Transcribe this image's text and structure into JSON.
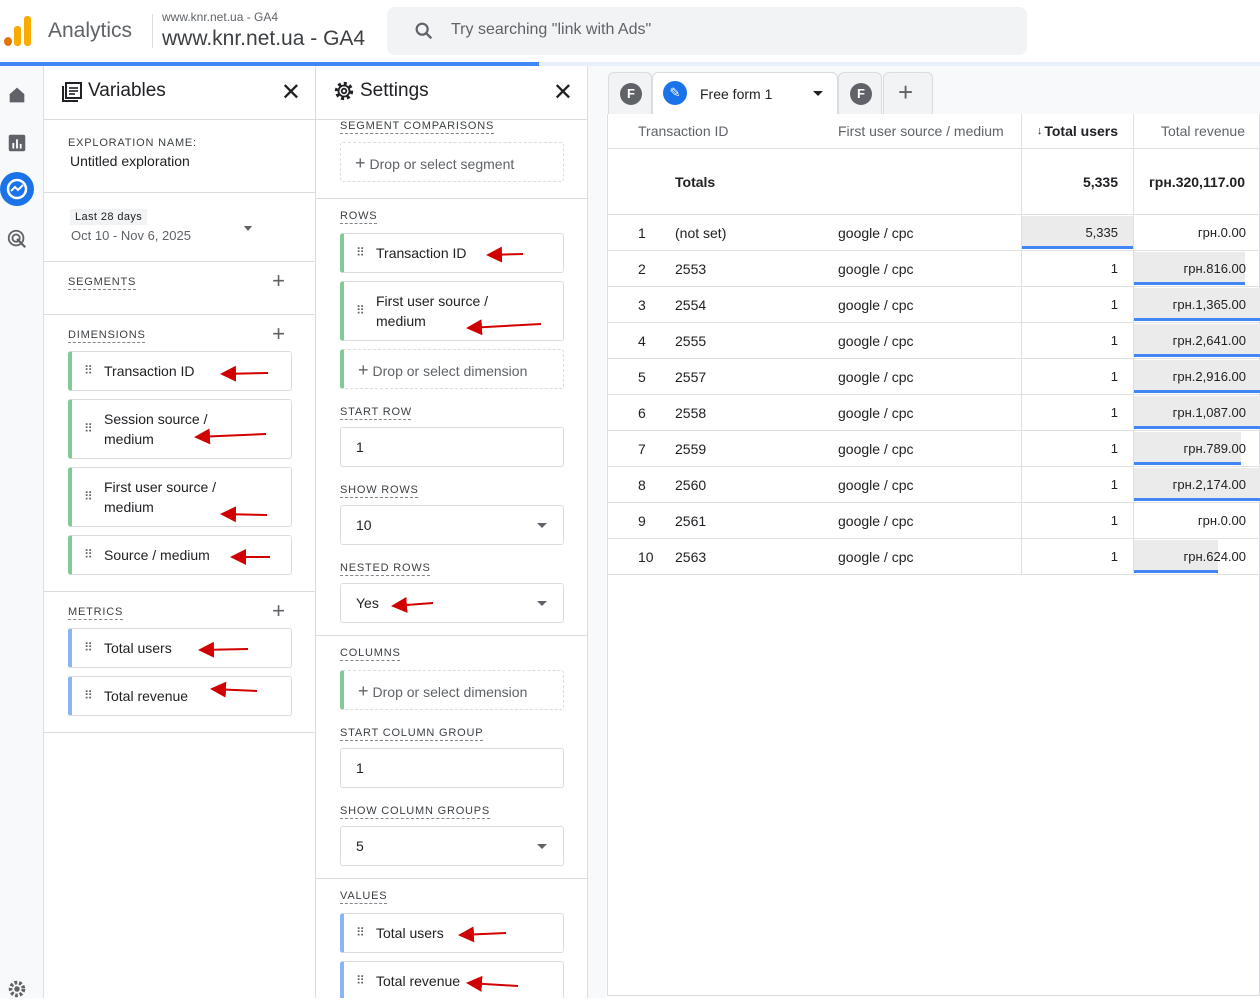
{
  "header": {
    "app_name": "Analytics",
    "property_small": "www.knr.net.ua - GA4",
    "property_big": "www.knr.net.ua - GA4",
    "search_placeholder": "Try searching \"link with Ads\"",
    "logo_colors": [
      "#e37400",
      "#f9ab00",
      "#f9ab00"
    ]
  },
  "rail": {
    "icons": [
      "home-icon",
      "reports-icon",
      "explore-icon",
      "advertising-icon",
      "settings-icon"
    ]
  },
  "variables": {
    "title": "Variables",
    "exploration_name_label": "EXPLORATION NAME:",
    "exploration_name": "Untitled exploration",
    "date_chip": "Last 28 days",
    "date_range": "Oct 10 - Nov 6, 2025",
    "segments_label": "SEGMENTS",
    "dimensions_label": "DIMENSIONS",
    "dimensions": [
      "Transaction ID",
      "Session source / medium",
      "First user source / medium",
      "Source / medium"
    ],
    "metrics_label": "METRICS",
    "metrics": [
      "Total users",
      "Total revenue"
    ]
  },
  "settings": {
    "title": "Settings",
    "segment_comparisons_label": "SEGMENT COMPARISONS",
    "drop_segment": "Drop or select segment",
    "rows_label": "ROWS",
    "rows": [
      "Transaction ID",
      "First user source / medium"
    ],
    "drop_dimension": "Drop or select dimension",
    "start_row_label": "START ROW",
    "start_row": "1",
    "show_rows_label": "SHOW ROWS",
    "show_rows": "10",
    "nested_rows_label": "NESTED ROWS",
    "nested_rows": "Yes",
    "columns_label": "COLUMNS",
    "drop_column_dimension": "Drop or select dimension",
    "start_column_group_label": "START COLUMN GROUP",
    "start_column_group": "1",
    "show_column_groups_label": "SHOW COLUMN GROUPS",
    "show_column_groups": "5",
    "values_label": "VALUES",
    "values": [
      "Total users",
      "Total revenue"
    ]
  },
  "tabs": {
    "first_letter": "F",
    "active": "Free form 1",
    "second_letter": "F",
    "add": "+"
  },
  "table": {
    "headers": [
      "Transaction ID",
      "First user source / medium",
      "Total users",
      "Total revenue"
    ],
    "sort_indicator": "↓",
    "totals_label": "Totals",
    "totals_users": "5,335",
    "totals_revenue": "грн.320,117.00",
    "rows": [
      {
        "n": "1",
        "id": "(not set)",
        "source": "google / cpc",
        "users": "5,335",
        "revenue": "грн.0.00",
        "users_fill": 1,
        "revenue_fill": 0
      },
      {
        "n": "2",
        "id": "2553",
        "source": "google / cpc",
        "users": "1",
        "revenue": "грн.816.00",
        "users_fill": 0,
        "revenue_fill": 0.88
      },
      {
        "n": "3",
        "id": "2554",
        "source": "google / cpc",
        "users": "1",
        "revenue": "грн.1,365.00",
        "users_fill": 0,
        "revenue_fill": 1
      },
      {
        "n": "4",
        "id": "2555",
        "source": "google / cpc",
        "users": "1",
        "revenue": "грн.2,641.00",
        "users_fill": 0,
        "revenue_fill": 1
      },
      {
        "n": "5",
        "id": "2557",
        "source": "google / cpc",
        "users": "1",
        "revenue": "грн.2,916.00",
        "users_fill": 0,
        "revenue_fill": 1
      },
      {
        "n": "6",
        "id": "2558",
        "source": "google / cpc",
        "users": "1",
        "revenue": "грн.1,087.00",
        "users_fill": 0,
        "revenue_fill": 1
      },
      {
        "n": "7",
        "id": "2559",
        "source": "google / cpc",
        "users": "1",
        "revenue": "грн.789.00",
        "users_fill": 0,
        "revenue_fill": 0.85
      },
      {
        "n": "8",
        "id": "2560",
        "source": "google / cpc",
        "users": "1",
        "revenue": "грн.2,174.00",
        "users_fill": 0,
        "revenue_fill": 1
      },
      {
        "n": "9",
        "id": "2561",
        "source": "google / cpc",
        "users": "1",
        "revenue": "грн.0.00",
        "users_fill": 0,
        "revenue_fill": 0
      },
      {
        "n": "10",
        "id": "2563",
        "source": "google / cpc",
        "users": "1",
        "revenue": "грн.624.00",
        "users_fill": 0,
        "revenue_fill": 0.67
      }
    ]
  },
  "colors": {
    "accent": "#1a73e8",
    "bar": "#4285f4",
    "dimension": "#81c995",
    "metric": "#8ab4f8",
    "annotation_arrow": "#d00000"
  }
}
